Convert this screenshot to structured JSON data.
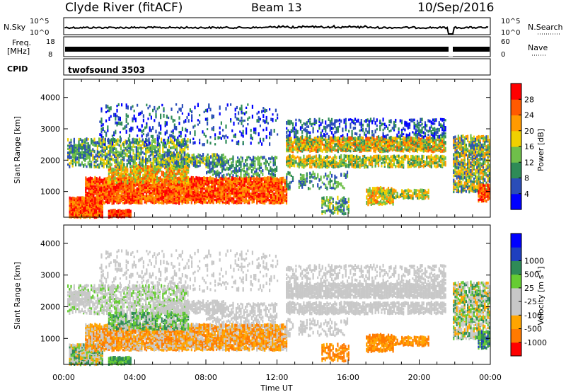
{
  "header": {
    "station": "Clyde River (fitACF)",
    "beam": "Beam 13",
    "date": "10/Sep/2016"
  },
  "status": {
    "nsky_label": "N.Sky",
    "nsky_ticks": [
      "10^5",
      "10^0"
    ],
    "nsearch_label": "N.Search",
    "nsearch_ticks": [
      "10^5",
      "10^0"
    ],
    "freq_label": "Freq.",
    "freq_unit": "[MHz]",
    "freq_ticks": [
      "18",
      "8"
    ],
    "nave_label": "Nave",
    "nave_ticks": [
      "60",
      "0"
    ],
    "cpid_label": "CPID",
    "cpid_value": "twofsound 3503"
  },
  "colors": {
    "power": [
      "#0000ff",
      "#2a4db8",
      "#2e8b57",
      "#6fbf4a",
      "#f0d000",
      "#ff9a00",
      "#ff5a00",
      "#ff0000"
    ],
    "velocity": [
      "#ff0000",
      "#ff7a00",
      "#ffa500",
      "#c8c8c8",
      "#c8c8c8",
      "#66cc33",
      "#2e8b57",
      "#1f3fbf",
      "#0000ff"
    ]
  },
  "chart_data": [
    {
      "type": "heatmap",
      "panel": "power",
      "ylabel": "Slant Range [km]",
      "xlabel": "Time UT",
      "x_ticks": [
        "00:00",
        "04:00",
        "08:00",
        "12:00",
        "16:00",
        "20:00",
        "00:00"
      ],
      "y_ticks": [
        1000,
        2000,
        3000,
        4000
      ],
      "ylim": [
        180,
        4580
      ],
      "xlim_hours": [
        0,
        24
      ],
      "colorbar_label": "Power [dB]",
      "colorbar_ticks": [
        4,
        8,
        12,
        16,
        20,
        24,
        28
      ]
    },
    {
      "type": "heatmap",
      "panel": "velocity",
      "ylabel": "Slant Range [km]",
      "xlabel": "Time UT",
      "x_ticks": [
        "00:00",
        "04:00",
        "08:00",
        "12:00",
        "16:00",
        "20:00",
        "00:00"
      ],
      "y_ticks": [
        1000,
        2000,
        3000,
        4000
      ],
      "ylim": [
        180,
        4580
      ],
      "xlim_hours": [
        0,
        24
      ],
      "colorbar_label": "Velocity [m s",
      "colorbar_label_sup": "-1",
      "colorbar_label_end": "]",
      "colorbar_ticks": [
        "1000",
        "500",
        "25",
        "-25",
        "-100",
        "-500",
        "-1000"
      ]
    }
  ]
}
